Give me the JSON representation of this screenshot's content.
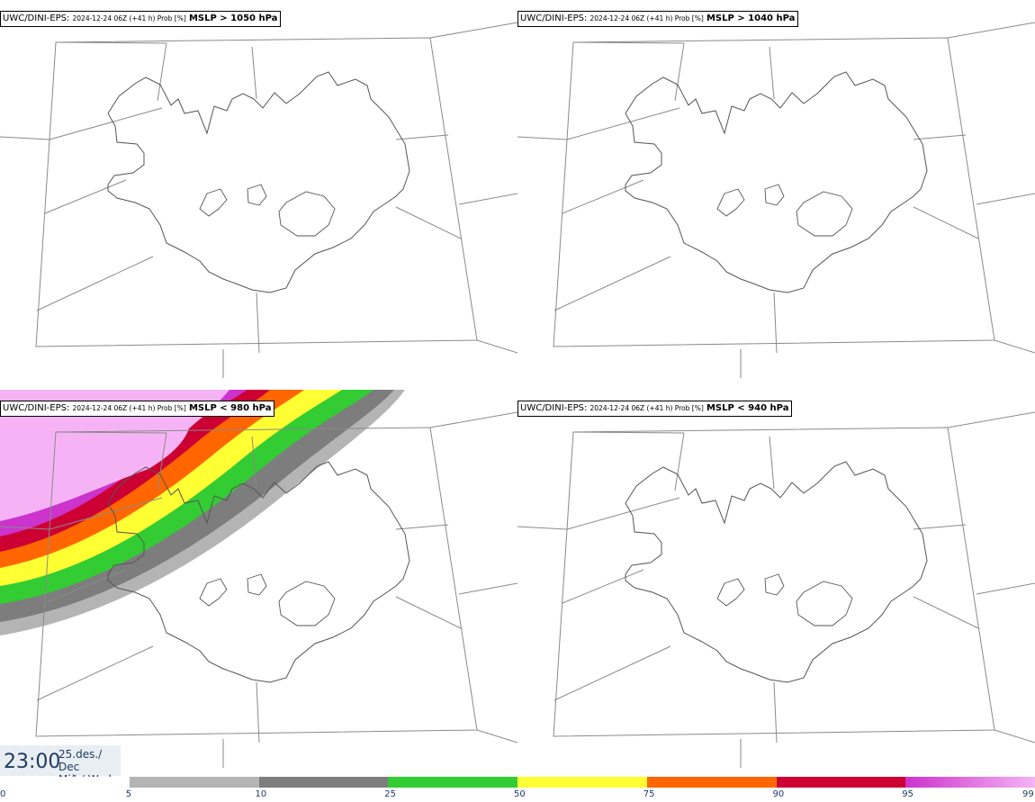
{
  "panels": [
    {
      "source": "UWC/DINI-EPS",
      "meta": "2024-12-24 06Z (+41 h) Prob [%]",
      "variable": "MSLP > 1050 hPa"
    },
    {
      "source": "UWC/DINI-EPS",
      "meta": "2024-12-24 06Z (+41 h) Prob [%]",
      "variable": "MSLP > 1040 hPa"
    },
    {
      "source": "UWC/DINI-EPS",
      "meta": "2024-12-24 06Z (+41 h) Prob [%]",
      "variable": "MSLP < 980 hPa"
    },
    {
      "source": "UWC/DINI-EPS",
      "meta": "2024-12-24 06Z (+41 h) Prob [%]",
      "variable": "MSLP < 940 hPa"
    }
  ],
  "valid_time": {
    "time": "23:00",
    "date": "25.des./ Dec",
    "weekday": "Mið./ Wed"
  },
  "colorbar": {
    "ticks": [
      "0",
      "5",
      "10",
      "25",
      "50",
      "75",
      "90",
      "95",
      "99"
    ],
    "colors": [
      "#ffffff",
      "#b4b4b4",
      "#7d7d7d",
      "#33cc33",
      "#ffff33",
      "#ff6600",
      "#cc0033",
      "#cc33cc",
      "#f5b3f5"
    ]
  }
}
